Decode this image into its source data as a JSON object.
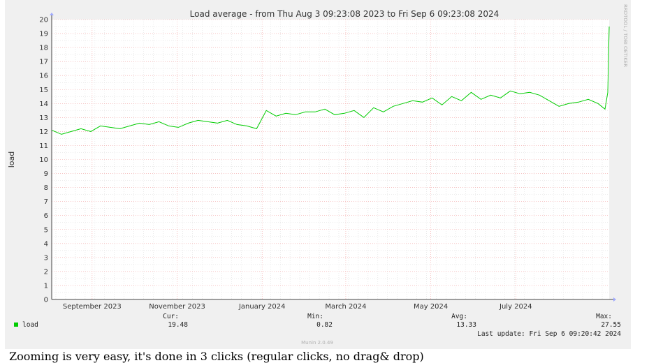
{
  "page": {
    "caption": "Zooming is very easy, it's done in 3 clicks (regular clicks, no drag& drop)"
  },
  "colors": {
    "series_line": "#00cc00",
    "grid_minor": "#d8d8d8",
    "grid_major": "#f2a0a0",
    "axis": "#444444",
    "canvas": "#ffffff",
    "panel": "#f0f0f0"
  },
  "chart_data": {
    "type": "line",
    "title": "Load average - from Thu Aug  3 09:23:08 2023 to Fri Sep  6 09:23:08 2024",
    "ylabel": "load",
    "xlabel": "",
    "ylim": [
      0,
      20
    ],
    "y_ticks": [
      "0",
      "1",
      "2",
      "3",
      "4",
      "5",
      "6",
      "7",
      "8",
      "9",
      "10",
      "11",
      "12",
      "13",
      "14",
      "15",
      "16",
      "17",
      "18",
      "19",
      "20"
    ],
    "x_range": [
      "2023-08-03",
      "2024-09-06"
    ],
    "x_ticks": [
      {
        "label": "September 2023",
        "date": "2023-09-01"
      },
      {
        "label": "November 2023",
        "date": "2023-11-01"
      },
      {
        "label": "January 2024",
        "date": "2024-01-01"
      },
      {
        "label": "March 2024",
        "date": "2024-03-01"
      },
      {
        "label": "May 2024",
        "date": "2024-05-01"
      },
      {
        "label": "July 2024",
        "date": "2024-07-01"
      }
    ],
    "grid": true,
    "watermark": "RRDTOOL / TOBI OETIKER",
    "series": [
      {
        "name": "load",
        "x": [
          "2023-08-03",
          "2023-08-10",
          "2023-08-17",
          "2023-08-24",
          "2023-08-31",
          "2023-09-07",
          "2023-09-14",
          "2023-09-21",
          "2023-09-28",
          "2023-10-05",
          "2023-10-12",
          "2023-10-19",
          "2023-10-26",
          "2023-11-02",
          "2023-11-09",
          "2023-11-16",
          "2023-11-23",
          "2023-11-30",
          "2023-12-07",
          "2023-12-14",
          "2023-12-21",
          "2023-12-28",
          "2024-01-04",
          "2024-01-11",
          "2024-01-18",
          "2024-01-25",
          "2024-02-01",
          "2024-02-08",
          "2024-02-15",
          "2024-02-22",
          "2024-02-29",
          "2024-03-07",
          "2024-03-14",
          "2024-03-21",
          "2024-03-28",
          "2024-04-04",
          "2024-04-11",
          "2024-04-18",
          "2024-04-25",
          "2024-05-02",
          "2024-05-09",
          "2024-05-16",
          "2024-05-23",
          "2024-05-30",
          "2024-06-06",
          "2024-06-13",
          "2024-06-20",
          "2024-06-27",
          "2024-07-04",
          "2024-07-11",
          "2024-07-18",
          "2024-07-25",
          "2024-08-01",
          "2024-08-08",
          "2024-08-15",
          "2024-08-22",
          "2024-08-29",
          "2024-09-03",
          "2024-09-05",
          "2024-09-06"
        ],
        "y": [
          12.1,
          11.8,
          12.0,
          12.2,
          12.0,
          12.4,
          12.3,
          12.2,
          12.4,
          12.6,
          12.5,
          12.7,
          12.4,
          12.3,
          12.6,
          12.8,
          12.7,
          12.6,
          12.8,
          12.5,
          12.4,
          12.2,
          13.5,
          13.1,
          13.3,
          13.2,
          13.4,
          13.4,
          13.6,
          13.2,
          13.3,
          13.5,
          13.0,
          13.7,
          13.4,
          13.8,
          14.0,
          14.2,
          14.1,
          14.4,
          13.9,
          14.5,
          14.2,
          14.8,
          14.3,
          14.6,
          14.4,
          14.9,
          14.7,
          14.8,
          14.6,
          14.2,
          13.8,
          14.0,
          14.1,
          14.3,
          14.0,
          13.6,
          14.8,
          19.5
        ]
      }
    ],
    "legend": {
      "items": [
        {
          "name": "load",
          "color": "#00cc00"
        }
      ],
      "placement": "bottom-left"
    },
    "stats": {
      "cur_label": "Cur:",
      "cur": "19.48",
      "min_label": "Min:",
      "min": "0.82",
      "avg_label": "Avg:",
      "avg": "13.33",
      "max_label": "Max:",
      "max": "27.55"
    },
    "last_update": "Last update: Fri Sep  6 09:20:42 2024",
    "footer": "Munin 2.0.49"
  }
}
